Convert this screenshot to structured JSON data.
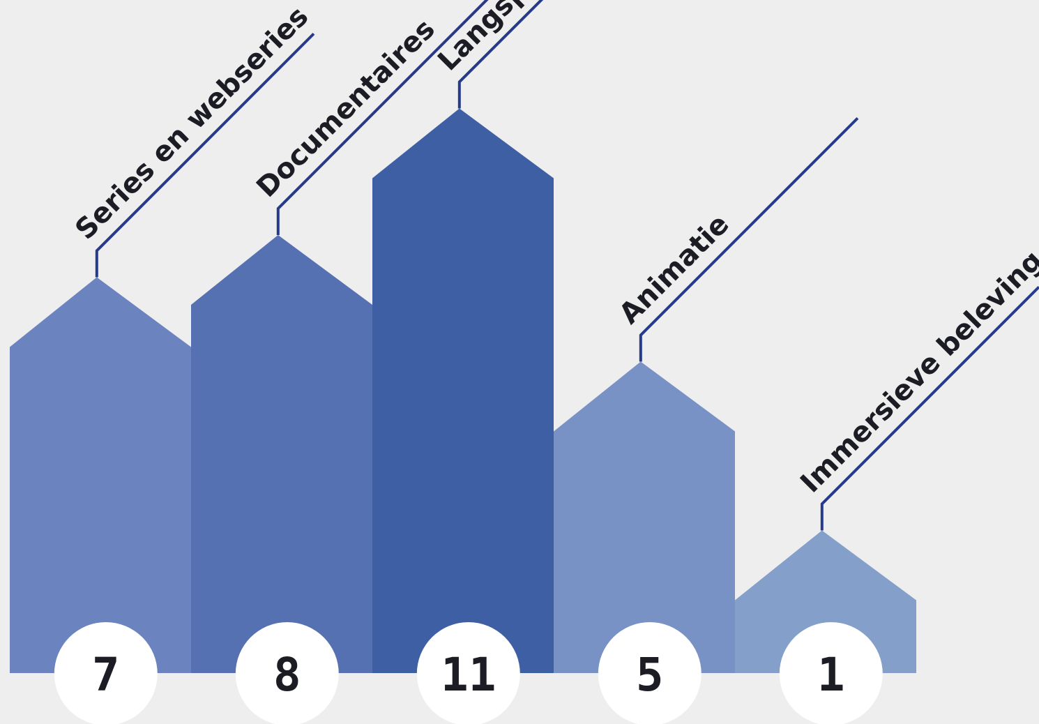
{
  "chart_data": {
    "type": "bar",
    "categories": [
      "Series en webseries",
      "Documentaires",
      "Langspeelfilm",
      "Animatie",
      "Immersieve beleving"
    ],
    "values": [
      7,
      8,
      11,
      5,
      1
    ],
    "value_labels": [
      "7",
      "8",
      "11",
      "5",
      "1"
    ],
    "colors": [
      "#6b84c0",
      "#5671b2",
      "#3f5fa5",
      "#7892c6",
      "#849fc9"
    ],
    "leader_color": "#253a8a",
    "badge_color": "#ffffff",
    "background": "#eeeeee",
    "grid": false,
    "legend": "none"
  }
}
